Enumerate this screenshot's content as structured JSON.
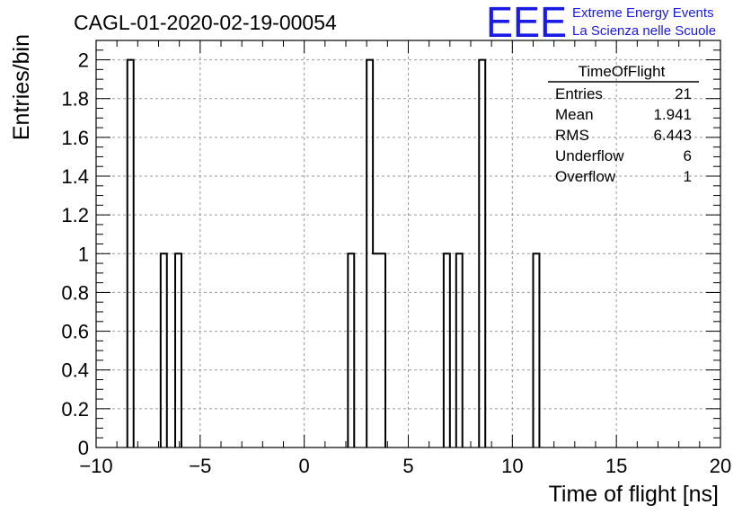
{
  "logo": {
    "mark": "EEE",
    "line1": "Extreme Energy Events",
    "line2": "La Scienza nelle Scuole",
    "color": "#1a1ae6"
  },
  "stats": {
    "title": "TimeOfFlight",
    "rows": [
      {
        "label": "Entries",
        "value": "21"
      },
      {
        "label": "Mean",
        "value": "1.941"
      },
      {
        "label": "RMS",
        "value": "6.443"
      },
      {
        "label": "Underflow",
        "value": "6"
      },
      {
        "label": "Overflow",
        "value": "1"
      }
    ]
  },
  "chart_data": {
    "type": "bar",
    "title": "CAGL-01-2020-02-19-00054",
    "xlabel": "Time of flight [ns]",
    "ylabel": "Entries/bin",
    "xlim": [
      -10,
      20
    ],
    "ylim": [
      0,
      2.1
    ],
    "grid": true,
    "bin_width": 0.3,
    "xticks": [
      -10,
      -5,
      0,
      5,
      10,
      15,
      20
    ],
    "xtick_labels": [
      "−10",
      "−5",
      "0",
      "5",
      "10",
      "15",
      "20"
    ],
    "yticks": [
      0,
      0.2,
      0.4,
      0.6,
      0.8,
      1,
      1.2,
      1.4,
      1.6,
      1.8,
      2
    ],
    "ytick_labels": [
      "0",
      "0.2",
      "0.4",
      "0.6",
      "0.8",
      "1",
      "1.2",
      "1.4",
      "1.6",
      "1.8",
      "2"
    ],
    "bins": [
      {
        "x": -8.5,
        "value": 2
      },
      {
        "x": -6.9,
        "value": 1
      },
      {
        "x": -6.2,
        "value": 1
      },
      {
        "x": 2.1,
        "value": 1
      },
      {
        "x": 3.0,
        "value": 2
      },
      {
        "x": 3.3,
        "value": 1
      },
      {
        "x": 3.6,
        "value": 1
      },
      {
        "x": 6.7,
        "value": 1
      },
      {
        "x": 7.3,
        "value": 1
      },
      {
        "x": 8.4,
        "value": 2
      },
      {
        "x": 11.0,
        "value": 1
      }
    ]
  }
}
